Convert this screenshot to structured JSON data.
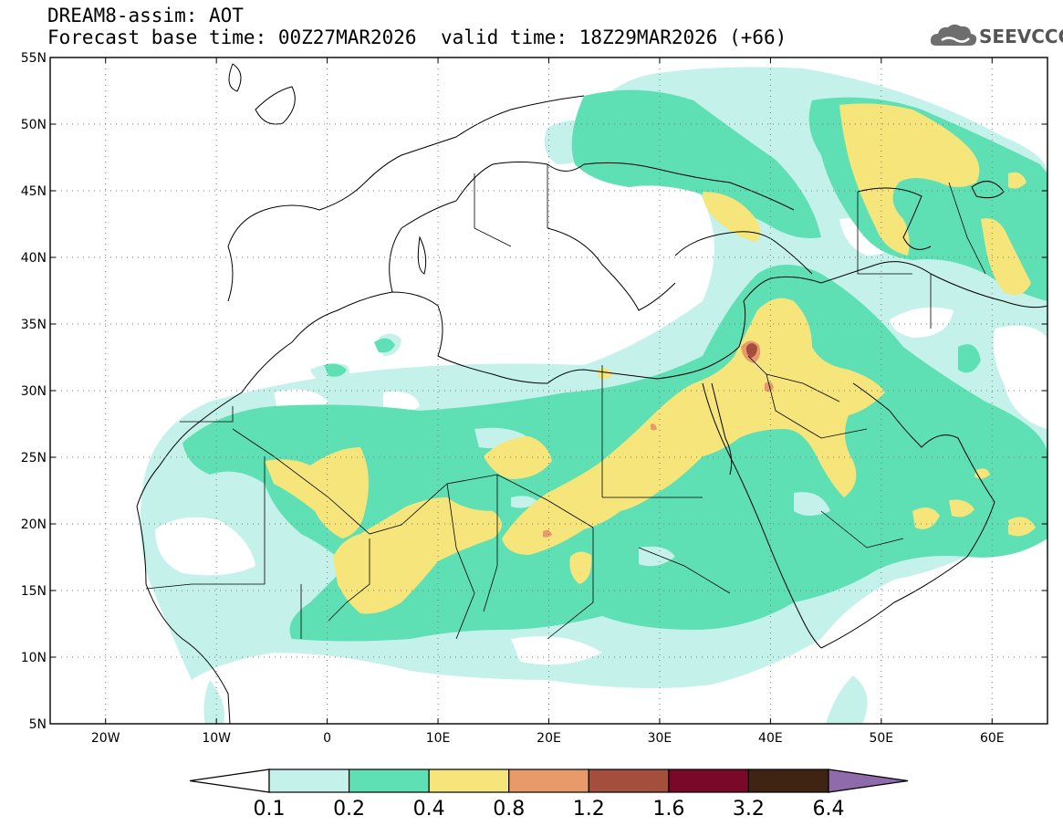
{
  "header": {
    "title": "DREAM8-assim: AOT",
    "forecast_base": "Forecast base time: 00Z27MAR2026",
    "valid_time": "valid time: 18Z29MAR2026 (+66)"
  },
  "logo": {
    "text": "SEEVCCC",
    "icon": "cloud-icon"
  },
  "map": {
    "lat_labels": [
      "55N",
      "50N",
      "45N",
      "40N",
      "35N",
      "30N",
      "25N",
      "20N",
      "15N",
      "10N",
      "5N"
    ],
    "lon_labels": [
      "20W",
      "10W",
      "0",
      "10E",
      "20E",
      "30E",
      "40E",
      "50E",
      "60E"
    ],
    "lat_range": [
      5,
      55
    ],
    "lon_range": [
      -25,
      65
    ],
    "grid": "dotted"
  },
  "colorbar": {
    "labels": [
      "0.1",
      "0.2",
      "0.4",
      "0.8",
      "1.2",
      "1.6",
      "3.2",
      "6.4"
    ],
    "colors": [
      "#ffffff",
      "#c4f1ea",
      "#5fe0b4",
      "#f5e57a",
      "#e99a6b",
      "#a44f3e",
      "#7a0828",
      "#3f2414",
      "#8f6bab"
    ]
  },
  "palette": {
    "level_01": "#c4f1ea",
    "level_02": "#5fe0b4",
    "level_04": "#f5e57a",
    "level_08": "#e99a6b",
    "level_12": "#a44f3e"
  }
}
